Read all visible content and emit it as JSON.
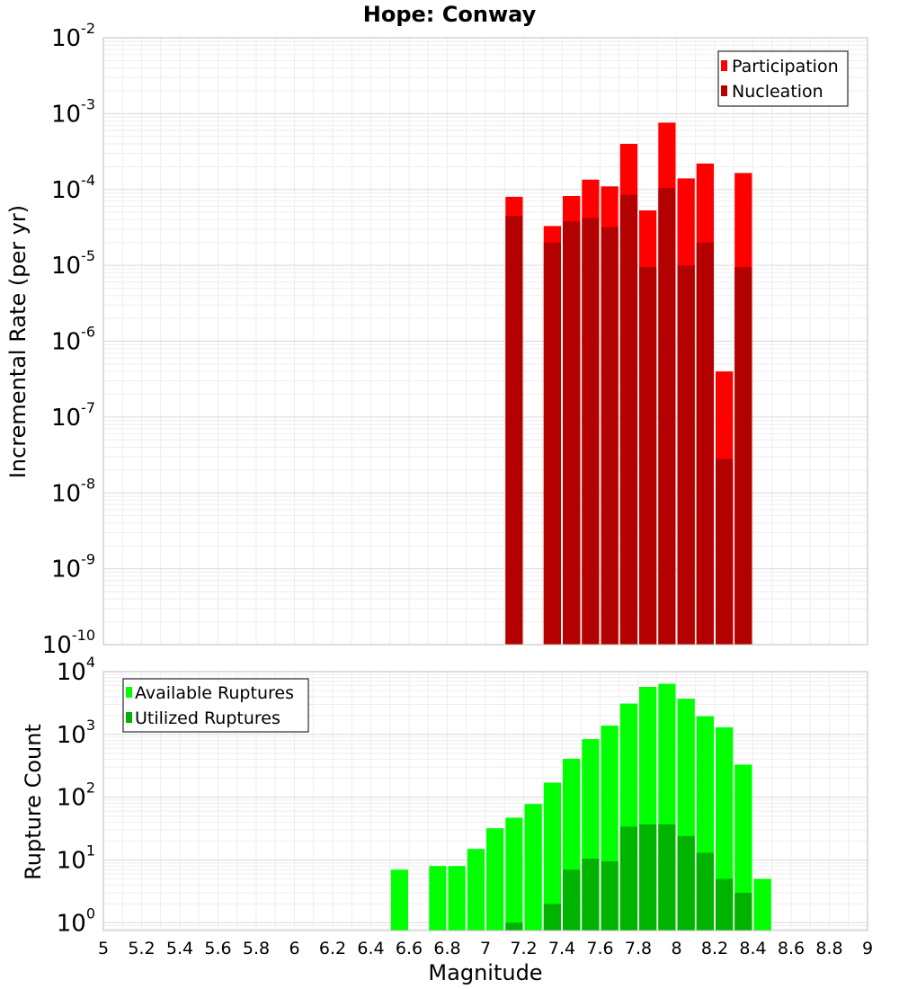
{
  "chart_data": [
    {
      "type": "bar",
      "title": "Hope: Conway",
      "xlabel": "",
      "ylabel": "Incremental Rate (per yr)",
      "yscale": "log",
      "xlim": [
        5,
        9
      ],
      "ylim": [
        1e-10,
        0.01
      ],
      "bar_width": 0.1,
      "grid": true,
      "legend_position": "top-right",
      "y_tick_exponents": [
        "-2",
        "-3",
        "-4",
        "-5",
        "-6",
        "-7",
        "-8",
        "-9",
        "-10"
      ],
      "series": [
        {
          "name": "Participation",
          "color": "#ff0000",
          "x": [
            7.15,
            7.35,
            7.45,
            7.55,
            7.65,
            7.75,
            7.85,
            7.95,
            8.05,
            8.15,
            8.25,
            8.35
          ],
          "values": [
            8e-05,
            3.3e-05,
            8.2e-05,
            0.000135,
            0.00011,
            0.0004,
            5.3e-05,
            0.00076,
            0.00014,
            0.00022,
            4e-07,
            0.000165
          ]
        },
        {
          "name": "Nucleation",
          "color": "#b30000",
          "x": [
            7.15,
            7.35,
            7.45,
            7.55,
            7.65,
            7.75,
            7.85,
            7.95,
            8.05,
            8.15,
            8.25,
            8.35
          ],
          "values": [
            4.5e-05,
            2e-05,
            3.8e-05,
            4.2e-05,
            3.2e-05,
            8.5e-05,
            9.5e-06,
            0.000105,
            1e-05,
            2e-05,
            2.8e-08,
            9.5e-06
          ]
        }
      ]
    },
    {
      "type": "bar",
      "title": "",
      "xlabel": "Magnitude",
      "ylabel": "Rupture Count",
      "yscale": "log",
      "xlim": [
        5,
        9
      ],
      "ylim": [
        0.75,
        10000
      ],
      "bar_width": 0.1,
      "grid": true,
      "legend_position": "top-left",
      "x_ticks": [
        "5",
        "5.2",
        "5.4",
        "5.6",
        "5.8",
        "6",
        "6.2",
        "6.4",
        "6.6",
        "6.8",
        "7",
        "7.2",
        "7.4",
        "7.6",
        "7.8",
        "8",
        "8.2",
        "8.4",
        "8.6",
        "8.8",
        "9"
      ],
      "y_tick_exponents": [
        "4",
        "3",
        "2",
        "1",
        "0"
      ],
      "series": [
        {
          "name": "Available Ruptures",
          "color": "#00ff00",
          "x": [
            6.55,
            6.75,
            6.85,
            6.95,
            7.05,
            7.15,
            7.25,
            7.35,
            7.45,
            7.55,
            7.65,
            7.75,
            7.85,
            7.95,
            8.05,
            8.15,
            8.25,
            8.35,
            8.45
          ],
          "values": [
            7,
            8,
            8,
            15,
            32,
            47,
            78,
            170,
            410,
            840,
            1380,
            3100,
            5700,
            6400,
            3700,
            1950,
            1300,
            330,
            5
          ]
        },
        {
          "name": "Utilized Ruptures",
          "color": "#00b300",
          "x": [
            7.15,
            7.35,
            7.45,
            7.55,
            7.65,
            7.75,
            7.85,
            7.95,
            8.05,
            8.15,
            8.25,
            8.35
          ],
          "values": [
            1,
            2,
            7,
            10.5,
            9.5,
            34,
            37,
            37,
            24,
            13,
            5,
            3
          ]
        }
      ]
    }
  ]
}
